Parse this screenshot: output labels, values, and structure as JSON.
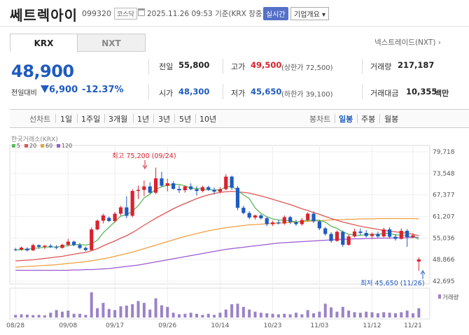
{
  "header": {
    "name": "쎄트렉아이",
    "code": "099320",
    "market": "코스닥",
    "datetime": "2025.11.26 09:53",
    "basis": "기준(KRX 장중)",
    "realtime": "실시간",
    "company_info": "기업개요"
  },
  "exchange_tabs": [
    "KRX",
    "NXT"
  ],
  "nextrade_link": "넥스트레이드(NXT)",
  "quote": {
    "price": "48,900",
    "change_label": "전일대비",
    "change": "6,900",
    "change_pct": "-12.37%"
  },
  "stats": {
    "prev_close": {
      "label": "전일",
      "value": "55,800"
    },
    "high": {
      "label": "고가",
      "value": "49,500",
      "sub": "(상한가 72,500)"
    },
    "volume": {
      "label": "거래량",
      "value": "217,187"
    },
    "open": {
      "label": "시가",
      "value": "48,300"
    },
    "low": {
      "label": "저가",
      "value": "45,650",
      "sub": "(하한가 39,100)"
    },
    "amount": {
      "label": "거래대금",
      "value": "10,355",
      "unit": "백만"
    }
  },
  "periods": {
    "line": "선차트",
    "line_items": [
      "1일",
      "1주일",
      "3개월",
      "1년",
      "3년",
      "5년",
      "10년"
    ],
    "candle": "봉차트",
    "candle_items": [
      "일봉",
      "주봉",
      "월봉"
    ],
    "selected": "일봉"
  },
  "chart_data": {
    "type": "candlestick",
    "source": "한국거래소(KRX)",
    "legend": [
      "5",
      "20",
      "60",
      "120"
    ],
    "ma_colors": {
      "5": "#5cb85c",
      "20": "#e05555",
      "60": "#f0a040",
      "120": "#9b59d0"
    },
    "up_color": "#d9232f",
    "down_color": "#1f5bc0",
    "y_ticks": [
      "79,718",
      "73,548",
      "67,377",
      "61,207",
      "55,036",
      "48,866",
      "42,695"
    ],
    "ylim": [
      42695,
      79718
    ],
    "x_ticks": [
      "08/28",
      "09/08",
      "09/17",
      "09/26",
      "10/14",
      "10/23",
      "11/03",
      "11/12",
      "11/21"
    ],
    "high_note": "최고 75,200 (09/24)",
    "low_note": "최저 45,650 (11/26)",
    "volume_label": "거래량",
    "candles": [
      [
        51800,
        52200,
        51300,
        51700
      ],
      [
        51700,
        52600,
        51400,
        52300
      ],
      [
        52000,
        52400,
        51200,
        51500
      ],
      [
        51500,
        53400,
        51300,
        53000
      ],
      [
        53000,
        53200,
        52000,
        52500
      ],
      [
        52500,
        53100,
        51900,
        52800
      ],
      [
        52800,
        53300,
        52200,
        52400
      ],
      [
        52400,
        53000,
        51800,
        52200
      ],
      [
        52200,
        53400,
        52000,
        53100
      ],
      [
        53100,
        54800,
        52600,
        54000
      ],
      [
        54000,
        54300,
        52700,
        53000
      ],
      [
        53000,
        53600,
        51800,
        52200
      ],
      [
        52200,
        52600,
        51200,
        51600
      ],
      [
        51600,
        58100,
        51500,
        57500
      ],
      [
        57500,
        60300,
        57200,
        60000
      ],
      [
        60000,
        62000,
        59200,
        61500
      ],
      [
        60800,
        61200,
        59600,
        59900
      ],
      [
        59900,
        62500,
        59400,
        62000
      ],
      [
        62000,
        64200,
        61500,
        63800
      ],
      [
        63800,
        67000,
        60700,
        61400
      ],
      [
        61400,
        69000,
        61000,
        68500
      ],
      [
        68500,
        70000,
        66200,
        68800
      ],
      [
        68800,
        71500,
        67000,
        69800
      ],
      [
        69800,
        71000,
        67800,
        68000
      ],
      [
        68000,
        75200,
        67600,
        72100
      ],
      [
        72100,
        74000,
        69700,
        70000
      ],
      [
        70000,
        72000,
        68400,
        70700
      ],
      [
        70700,
        71300,
        68800,
        69100
      ],
      [
        69100,
        70100,
        67900,
        68700
      ],
      [
        68700,
        70000,
        68000,
        69800
      ],
      [
        69800,
        70700,
        68700,
        69000
      ],
      [
        69000,
        69900,
        67200,
        68500
      ],
      [
        68500,
        70000,
        68100,
        69600
      ],
      [
        69600,
        70000,
        68500,
        68800
      ],
      [
        68800,
        69500,
        67500,
        68300
      ],
      [
        68300,
        69600,
        67800,
        69000
      ],
      [
        69000,
        73300,
        68700,
        72600
      ],
      [
        72600,
        72900,
        68800,
        69400
      ],
      [
        69400,
        69900,
        63000,
        63700
      ],
      [
        63700,
        64300,
        61800,
        62200
      ],
      [
        62200,
        62700,
        60400,
        60900
      ],
      [
        60900,
        61700,
        60300,
        61500
      ],
      [
        61500,
        61900,
        60300,
        60700
      ],
      [
        60700,
        61200,
        58400,
        59000
      ],
      [
        59000,
        60000,
        58500,
        59500
      ],
      [
        59500,
        60200,
        58900,
        59200
      ],
      [
        59200,
        61500,
        58800,
        61000
      ],
      [
        61000,
        61400,
        59000,
        59600
      ],
      [
        59600,
        60300,
        58500,
        59000
      ],
      [
        59000,
        60800,
        58600,
        60200
      ],
      [
        60200,
        62400,
        59800,
        62000
      ],
      [
        62000,
        62700,
        59300,
        59800
      ],
      [
        59800,
        60200,
        57300,
        57800
      ],
      [
        57800,
        58200,
        55700,
        56200
      ],
      [
        56200,
        56700,
        53700,
        54200
      ],
      [
        54200,
        57200,
        54000,
        56800
      ],
      [
        56800,
        57200,
        52500,
        53100
      ],
      [
        53100,
        56000,
        52800,
        55500
      ],
      [
        55500,
        57700,
        55200,
        56900
      ],
      [
        56900,
        57800,
        55800,
        56500
      ],
      [
        56500,
        57300,
        55200,
        55600
      ],
      [
        55600,
        56600,
        54800,
        56200
      ],
      [
        56200,
        56900,
        55000,
        55500
      ],
      [
        55500,
        58000,
        55200,
        57500
      ],
      [
        57500,
        58100,
        54900,
        55400
      ],
      [
        55400,
        56200,
        54300,
        54800
      ],
      [
        54800,
        57800,
        54600,
        57100
      ],
      [
        57100,
        57600,
        52500,
        55300
      ],
      [
        55300,
        56400,
        54900,
        55800
      ],
      [
        48300,
        49500,
        45650,
        48900
      ]
    ],
    "volumes": [
      0.1,
      0.12,
      0.11,
      0.09,
      0.1,
      0.08,
      0.18,
      0.28,
      0.22,
      0.26,
      0.14,
      0.14,
      0.1,
      0.95,
      0.35,
      0.55,
      0.32,
      0.28,
      0.42,
      0.45,
      0.5,
      0.62,
      0.55,
      0.3,
      0.72,
      0.46,
      0.4,
      0.18,
      0.12,
      0.14,
      0.18,
      0.14,
      0.1,
      0.14,
      0.1,
      0.18,
      0.3,
      0.5,
      0.52,
      0.4,
      0.3,
      0.22,
      0.18,
      0.16,
      0.14,
      0.12,
      0.14,
      0.12,
      0.18,
      0.12,
      0.28,
      0.16,
      0.22,
      0.52,
      0.38,
      0.22,
      0.4,
      0.26,
      0.2,
      0.18,
      0.22,
      0.2,
      0.16,
      0.2,
      0.18,
      0.16,
      0.2,
      0.26,
      0.16,
      0.35
    ],
    "ma5": [
      51600,
      51700,
      51800,
      52100,
      52200,
      52400,
      52500,
      52500,
      52600,
      52900,
      53100,
      53200,
      53000,
      53400,
      54400,
      56500,
      58100,
      59700,
      61300,
      61700,
      62700,
      64300,
      66500,
      67600,
      69000,
      69700,
      70100,
      70400,
      70400,
      70000,
      69300,
      69200,
      69100,
      68900,
      68800,
      68800,
      69700,
      69900,
      68600,
      67400,
      66300,
      63600,
      62100,
      61100,
      60500,
      60200,
      60100,
      60000,
      59600,
      59800,
      60100,
      60200,
      60100,
      59600,
      58400,
      57800,
      56800,
      56100,
      55900,
      55800,
      56000,
      56100,
      56100,
      56300,
      56400,
      55900,
      55900,
      55600,
      55400,
      54700
    ],
    "ma20": [
      48500,
      48600,
      48700,
      48800,
      49000,
      49200,
      49400,
      49600,
      49800,
      50100,
      50400,
      50700,
      50900,
      51400,
      52000,
      52800,
      53500,
      54200,
      55000,
      55700,
      56600,
      57600,
      58700,
      59700,
      60700,
      61600,
      62500,
      63400,
      64200,
      64900,
      65600,
      66300,
      66900,
      67400,
      67800,
      68100,
      68300,
      68400,
      68300,
      68100,
      67900,
      67500,
      67100,
      66600,
      66100,
      65600,
      65100,
      64600,
      64000,
      63400,
      62900,
      62300,
      61800,
      61200,
      60600,
      60100,
      59600,
      59200,
      58800,
      58400,
      58100,
      57800,
      57500,
      57200,
      57000,
      56800,
      56600,
      56400,
      56100,
      55700
    ],
    "ma60": [
      46700,
      46800,
      46900,
      47000,
      47100,
      47200,
      47300,
      47400,
      47600,
      47800,
      47900,
      48100,
      48300,
      48500,
      48800,
      49100,
      49400,
      49800,
      50200,
      50600,
      51000,
      51500,
      52000,
      52500,
      53000,
      53500,
      54000,
      54500,
      55000,
      55500,
      55900,
      56300,
      56700,
      57100,
      57400,
      57700,
      58000,
      58200,
      58400,
      58600,
      58800,
      58900,
      59000,
      59100,
      59200,
      59300,
      59400,
      59500,
      59600,
      59700,
      59800,
      59900,
      60000,
      60100,
      60200,
      60300,
      60300,
      60400,
      60400,
      60500,
      60500,
      60500,
      60600,
      60600,
      60600,
      60600,
      60600,
      60600,
      60600,
      60500
    ],
    "ma120": [
      45800,
      45800,
      45800,
      45800,
      45800,
      45800,
      45800,
      45800,
      45800,
      45800,
      45900,
      45900,
      46000,
      46000,
      46100,
      46200,
      46300,
      46500,
      46700,
      46900,
      47100,
      47300,
      47600,
      47900,
      48200,
      48500,
      48800,
      49100,
      49400,
      49700,
      50000,
      50300,
      50600,
      50900,
      51200,
      51500,
      51800,
      52000,
      52200,
      52400,
      52600,
      52800,
      53000,
      53200,
      53400,
      53600,
      53700,
      53800,
      53900,
      54000,
      54100,
      54200,
      54300,
      54400,
      54500,
      54600,
      54700,
      54700,
      54800,
      54800,
      54900,
      54900,
      55000,
      55000,
      55000,
      55100,
      55100,
      55100,
      55200,
      55200
    ]
  }
}
